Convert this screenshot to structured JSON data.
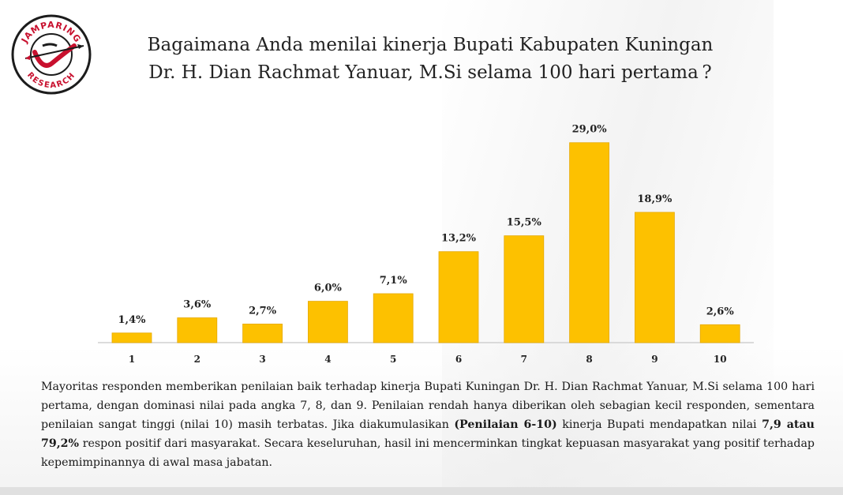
{
  "logo": {
    "top_text": "JAMPARING",
    "bottom_text": "RESEARCH",
    "colors": {
      "red": "#c8102e",
      "dark": "#1c1c1c"
    }
  },
  "title": {
    "line1": "Bagaimana Anda menilai kinerja Bupati Kabupaten Kuningan",
    "line2": "Dr. H. Dian Rachmat Yanuar, M.Si selama 100 hari pertama ?"
  },
  "chart_data": {
    "type": "bar",
    "categories": [
      "1",
      "2",
      "3",
      "4",
      "5",
      "6",
      "7",
      "8",
      "9",
      "10"
    ],
    "values": [
      1.4,
      3.6,
      2.7,
      6.0,
      7.1,
      13.2,
      15.5,
      29.0,
      18.9,
      2.6
    ],
    "data_labels": [
      "1,4%",
      "3,6%",
      "2,7%",
      "6,0%",
      "7,1%",
      "13,2%",
      "15,5%",
      "29,0%",
      "18,9%",
      "2,6%"
    ],
    "ylim": [
      0,
      30
    ],
    "grid": false,
    "bar_color": "#fdc100"
  },
  "description": {
    "t1": "Mayoritas responden memberikan penilaian baik terhadap kinerja Bupati Kuningan Dr. H. Dian Rachmat Yanuar, M.Si selama 100 hari pertama, dengan dominasi nilai pada angka 7, 8, dan 9. Penilaian rendah hanya diberikan oleh sebagian kecil responden, sementara penilaian sangat tinggi (nilai 10) masih terbatas. Jika diakumulasikan ",
    "b1": "(Penilaian 6-10)",
    "t2": " kinerja Bupati mendapatkan nilai ",
    "b2": "7,9 atau 79,2%",
    "t3": " respon positif dari masyarakat. Secara keseluruhan, hasil ini mencerminkan tingkat kepuasan masyarakat yang positif terhadap kepemimpinannya di awal masa jabatan."
  }
}
